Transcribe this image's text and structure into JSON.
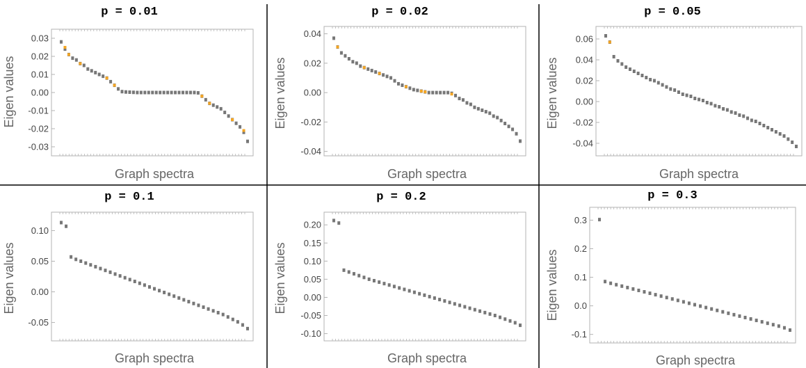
{
  "colors": {
    "frame": "#b3b3b3",
    "divider": "#000000",
    "marker": "#777777",
    "highlight": "#f5a623",
    "text": "#444444"
  },
  "chart_data": [
    {
      "type": "scatter",
      "title": "p = 0.01",
      "xlabel": "Graph spectra",
      "ylabel": "Eigen values",
      "ylim": [
        -0.035,
        0.035
      ],
      "yticks": [
        0.03,
        0.02,
        0.01,
        0.0,
        -0.01,
        -0.02,
        -0.03
      ],
      "ytick_labels": [
        "0.03",
        "0.02",
        "0.01",
        "0.00",
        "-0.01",
        "-0.02",
        "-0.03"
      ],
      "highlight_values": [
        0.025,
        0.021,
        0.016,
        0.008,
        0.004,
        -0.002,
        -0.006,
        -0.015,
        -0.021
      ],
      "series": [
        {
          "name": "eigenvalues",
          "values": [
            0.028,
            0.024,
            0.021,
            0.019,
            0.018,
            0.016,
            0.015,
            0.013,
            0.012,
            0.011,
            0.01,
            0.009,
            0.008,
            0.006,
            0.004,
            0.002,
            0.0005,
            0.0003,
            0.0002,
            0.0001,
            0,
            0,
            0,
            0,
            0,
            0,
            0,
            0,
            0,
            0,
            0,
            0,
            0,
            0,
            0,
            0,
            -0.0002,
            -0.002,
            -0.004,
            -0.006,
            -0.007,
            -0.008,
            -0.009,
            -0.011,
            -0.013,
            -0.015,
            -0.017,
            -0.019,
            -0.022,
            -0.027
          ]
        }
      ]
    },
    {
      "type": "scatter",
      "title": "p = 0.02",
      "xlabel": "Graph spectra",
      "ylabel": "Eigen values",
      "ylim": [
        -0.043,
        0.045
      ],
      "yticks": [
        0.04,
        0.02,
        0.0,
        -0.02,
        -0.04
      ],
      "ytick_labels": [
        "0.04",
        "0.02",
        "0.00",
        "-0.02",
        "-0.04"
      ],
      "highlight_values": [
        0.031,
        0.017,
        0.013,
        0.004,
        0.001,
        0.0005,
        -0.001
      ],
      "series": [
        {
          "name": "eigenvalues",
          "values": [
            0.037,
            0.031,
            0.027,
            0.025,
            0.023,
            0.021,
            0.02,
            0.018,
            0.017,
            0.016,
            0.015,
            0.014,
            0.013,
            0.012,
            0.011,
            0.01,
            0.008,
            0.006,
            0.005,
            0.004,
            0.003,
            0.002,
            0.0015,
            0.001,
            0.0005,
            0,
            0,
            0,
            0,
            0,
            0,
            -0.0005,
            -0.002,
            -0.004,
            -0.005,
            -0.007,
            -0.008,
            -0.01,
            -0.011,
            -0.012,
            -0.013,
            -0.014,
            -0.016,
            -0.017,
            -0.019,
            -0.021,
            -0.023,
            -0.025,
            -0.028,
            -0.033
          ]
        }
      ]
    },
    {
      "type": "scatter",
      "title": "p = 0.05",
      "xlabel": "Graph spectra",
      "ylabel": "Eigen values",
      "ylim": [
        -0.052,
        0.072
      ],
      "yticks": [
        0.06,
        0.04,
        0.02,
        0.0,
        -0.02,
        -0.04
      ],
      "ytick_labels": [
        "0.06",
        "0.04",
        "0.02",
        "0.00",
        "-0.02",
        "-0.04"
      ],
      "highlight_values": [
        0.057
      ],
      "series": [
        {
          "name": "eigenvalues",
          "values": [
            0.063,
            0.057,
            0.043,
            0.039,
            0.036,
            0.033,
            0.031,
            0.029,
            0.027,
            0.025,
            0.023,
            0.021,
            0.02,
            0.018,
            0.016,
            0.014,
            0.012,
            0.011,
            0.009,
            0.007,
            0.006,
            0.005,
            0.003,
            0.002,
            0.001,
            -0.001,
            -0.002,
            -0.004,
            -0.005,
            -0.007,
            -0.008,
            -0.01,
            -0.011,
            -0.013,
            -0.014,
            -0.016,
            -0.018,
            -0.019,
            -0.021,
            -0.023,
            -0.025,
            -0.027,
            -0.029,
            -0.031,
            -0.033,
            -0.036,
            -0.039,
            -0.043
          ]
        }
      ]
    },
    {
      "type": "scatter",
      "title": "p = 0.1",
      "xlabel": "Graph spectra",
      "ylabel": "Eigen values",
      "ylim": [
        -0.08,
        0.13
      ],
      "yticks": [
        0.1,
        0.05,
        0.0,
        -0.05
      ],
      "ytick_labels": [
        "0.10",
        "0.05",
        "0.00",
        "-0.05"
      ],
      "highlight_values": [],
      "series": [
        {
          "name": "eigenvalues",
          "values": [
            0.113,
            0.107,
            0.057,
            0.053,
            0.05,
            0.047,
            0.044,
            0.041,
            0.038,
            0.035,
            0.032,
            0.029,
            0.026,
            0.023,
            0.02,
            0.017,
            0.014,
            0.011,
            0.008,
            0.005,
            0.002,
            -0.001,
            -0.004,
            -0.007,
            -0.01,
            -0.013,
            -0.016,
            -0.019,
            -0.022,
            -0.025,
            -0.028,
            -0.031,
            -0.034,
            -0.037,
            -0.041,
            -0.045,
            -0.049,
            -0.054,
            -0.06
          ]
        }
      ]
    },
    {
      "type": "scatter",
      "title": "p = 0.2",
      "xlabel": "Graph spectra",
      "ylabel": "Eigen values",
      "ylim": [
        -0.12,
        0.235
      ],
      "yticks": [
        0.2,
        0.15,
        0.1,
        0.05,
        0.0,
        -0.05,
        -0.1
      ],
      "ytick_labels": [
        "0.20",
        "0.15",
        "0.10",
        "0.05",
        "0.00",
        "-0.05",
        "-0.10"
      ],
      "highlight_values": [],
      "series": [
        {
          "name": "eigenvalues",
          "values": [
            0.212,
            0.205,
            0.075,
            0.07,
            0.065,
            0.06,
            0.055,
            0.05,
            0.046,
            0.042,
            0.038,
            0.034,
            0.03,
            0.026,
            0.022,
            0.018,
            0.014,
            0.01,
            0.006,
            0.002,
            -0.002,
            -0.006,
            -0.01,
            -0.014,
            -0.018,
            -0.022,
            -0.026,
            -0.03,
            -0.034,
            -0.038,
            -0.042,
            -0.046,
            -0.05,
            -0.055,
            -0.06,
            -0.065,
            -0.07,
            -0.077
          ]
        }
      ]
    },
    {
      "type": "scatter",
      "title": "p = 0.3",
      "xlabel": "Graph spectra",
      "ylabel": "Eigen values",
      "ylim": [
        -0.13,
        0.345
      ],
      "yticks": [
        0.3,
        0.2,
        0.1,
        0.0,
        -0.1
      ],
      "ytick_labels": [
        "0.3",
        "0.2",
        "0.1",
        "0.0",
        "-0.1"
      ],
      "highlight_values": [],
      "series": [
        {
          "name": "eigenvalues",
          "values": [
            0.302,
            0.085,
            0.079,
            0.074,
            0.069,
            0.064,
            0.059,
            0.054,
            0.049,
            0.044,
            0.039,
            0.034,
            0.029,
            0.024,
            0.019,
            0.014,
            0.009,
            0.004,
            -0.001,
            -0.006,
            -0.011,
            -0.016,
            -0.021,
            -0.026,
            -0.031,
            -0.036,
            -0.041,
            -0.046,
            -0.051,
            -0.056,
            -0.061,
            -0.066,
            -0.071,
            -0.077,
            -0.085
          ]
        }
      ]
    }
  ]
}
